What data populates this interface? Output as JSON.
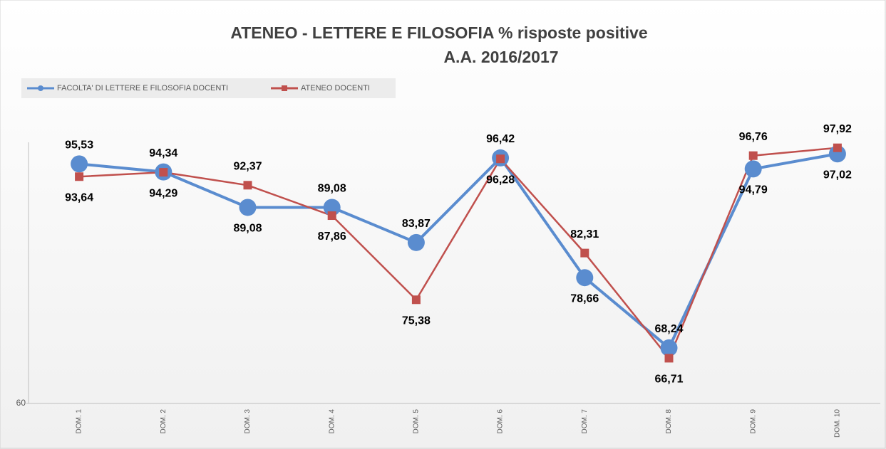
{
  "chart_data": {
    "type": "line",
    "title": "ATENEO - LETTERE E FILOSOFIA % risposte positive",
    "subtitle": "A.A. 2016/2017",
    "categories": [
      "DOM. 1",
      "DOM. 2",
      "DOM. 3",
      "DOM. 4",
      "DOM. 5",
      "DOM. 6",
      "DOM. 7",
      "DOM. 8",
      "DOM. 9",
      "DOM. 10"
    ],
    "series": [
      {
        "name": "FACOLTA' DI LETTERE E FILOSOFIA DOCENTI",
        "color": "#5a8ccf",
        "marker": "circle",
        "values": [
          95.53,
          94.34,
          89.08,
          89.08,
          83.87,
          96.42,
          78.66,
          68.24,
          94.79,
          97.02
        ],
        "value_labels": [
          "95,53",
          "94,34",
          "89,08",
          "89,08",
          "83,87",
          "96,42",
          "78,66",
          "68,24",
          "94,79",
          "97,02"
        ]
      },
      {
        "name": "ATENEO DOCENTI",
        "color": "#c0504d",
        "marker": "square",
        "values": [
          93.64,
          94.29,
          92.37,
          87.86,
          75.38,
          96.28,
          82.31,
          66.71,
          96.76,
          97.92
        ],
        "value_labels": [
          "93,64",
          "94,29",
          "92,37",
          "87,86",
          "75,38",
          "96,28",
          "82,31",
          "66,71",
          "96,76",
          "97,92"
        ]
      }
    ],
    "ylim": [
      60,
      100
    ],
    "yticks": [
      60
    ]
  }
}
